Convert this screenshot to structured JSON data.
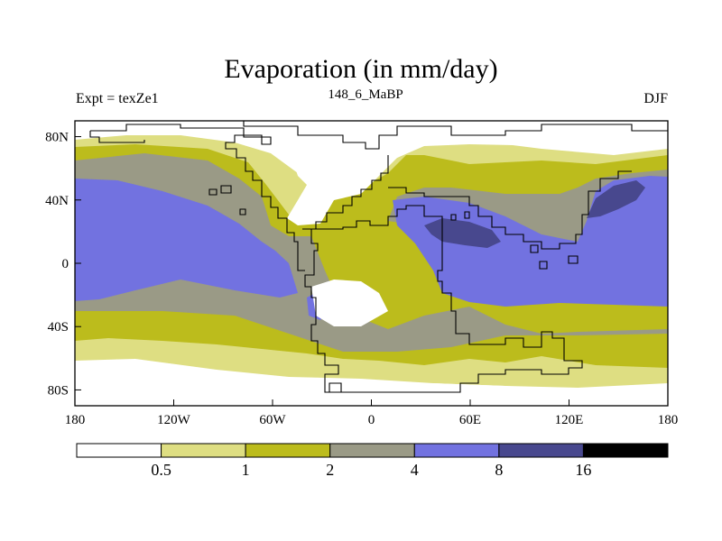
{
  "title": "Evaporation (in mm/day)",
  "left_label": "Expt = texZe1",
  "center_label": "148_6_MaBP",
  "right_label": "DJF",
  "x_ticks": [
    {
      "value": -180,
      "label": "180"
    },
    {
      "value": -120,
      "label": "120W"
    },
    {
      "value": -60,
      "label": "60W"
    },
    {
      "value": 0,
      "label": "0"
    },
    {
      "value": 60,
      "label": "60E"
    },
    {
      "value": 120,
      "label": "120E"
    },
    {
      "value": 180,
      "label": "180"
    }
  ],
  "y_ticks": [
    {
      "value": 80,
      "label": "80N"
    },
    {
      "value": 40,
      "label": "40N"
    },
    {
      "value": 0,
      "label": "0"
    },
    {
      "value": -40,
      "label": "40S"
    },
    {
      "value": -80,
      "label": "80S"
    }
  ],
  "colorbar": {
    "colors": [
      "#ffffff",
      "#dede82",
      "#bcbc1c",
      "#9a9a86",
      "#7272e0",
      "#48488e",
      "#000000"
    ],
    "labels": [
      "0.5",
      "1",
      "2",
      "4",
      "8",
      "16"
    ]
  },
  "chart_data": {
    "type": "heatmap",
    "title": "Evaporation (in mm/day)",
    "variable": "Evaporation",
    "units": "mm/day",
    "experiment": "Expt = texZe1",
    "period": "148_6_MaBP",
    "season": "DJF",
    "x_range": [
      -180,
      180
    ],
    "y_range": [
      -90,
      90
    ],
    "contour_levels": [
      0.5,
      1,
      2,
      4,
      8,
      16
    ]
  }
}
